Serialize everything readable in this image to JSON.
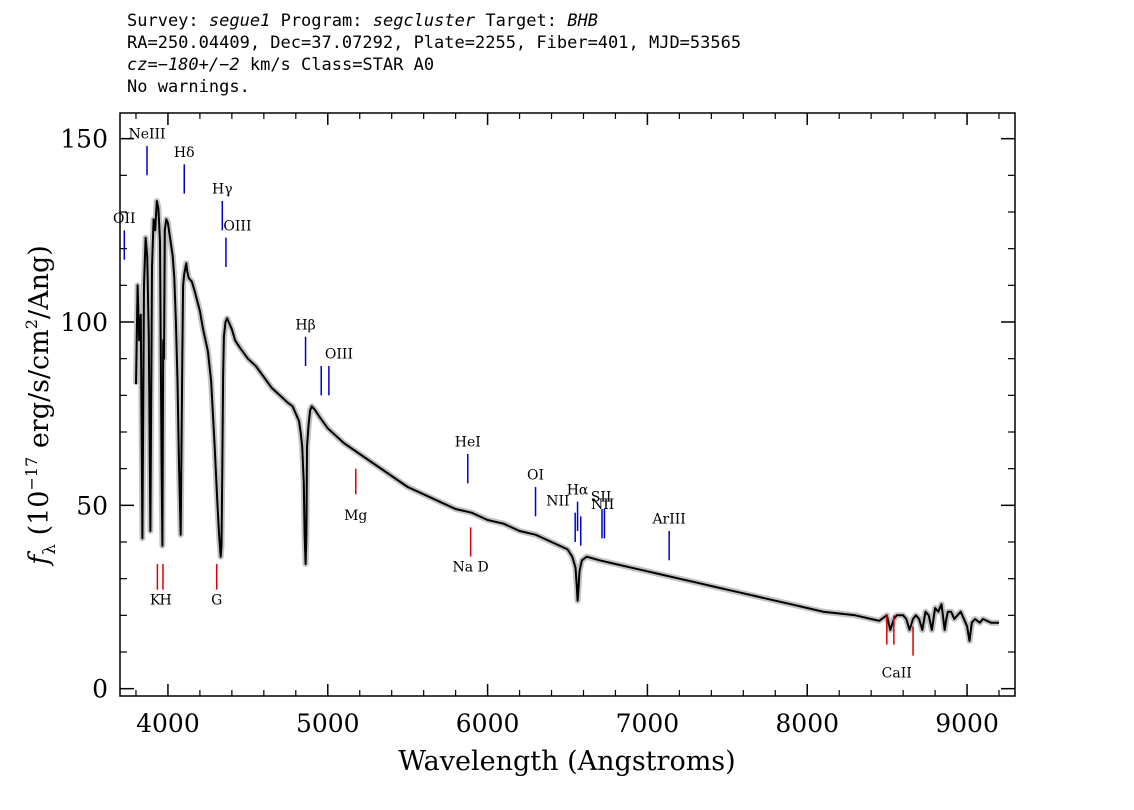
{
  "header": {
    "survey_label": "Survey:",
    "survey": "segue1",
    "program_label": "Program:",
    "program": "segcluster",
    "target_label": "Target:",
    "target": "BHB",
    "line2": "RA=250.04409, Dec=37.07292, Plate=2255, Fiber=401, MJD=53565",
    "cz": "cz=−180+/−2",
    "cz_rest": "km/s Class=STAR A0",
    "warnings": "No warnings."
  },
  "colors": {
    "emission": "#0000cc",
    "absorption": "#dd0000",
    "spectrum": "#000000",
    "error": "#b3b3b3"
  },
  "chart_data": {
    "type": "line",
    "xlabel": "Wavelength (Angstroms)",
    "ylabel": "f_λ (10^-17 erg/s/cm^2/Ang)",
    "xlim": [
      3700,
      9300
    ],
    "ylim": [
      -2,
      157
    ],
    "xticks": [
      "4000",
      "5000",
      "6000",
      "7000",
      "8000",
      "9000"
    ],
    "yticks": [
      "0",
      "50",
      "100",
      "150"
    ],
    "series": [
      {
        "x": [
          3800,
          3810,
          3820,
          3830,
          3840,
          3850,
          3860,
          3870,
          3880,
          3890,
          3900,
          3910,
          3920,
          3930,
          3940,
          3950,
          3960,
          3965,
          3970,
          3975,
          3980,
          3990,
          4000,
          4010,
          4020,
          4030,
          4040,
          4050,
          4060,
          4070,
          4080,
          4090,
          4095,
          4102,
          4110,
          4115,
          4120,
          4130,
          4150,
          4170,
          4200,
          4220,
          4250,
          4270,
          4290,
          4310,
          4320,
          4330,
          4335,
          4340,
          4345,
          4350,
          4360,
          4370,
          4380,
          4400,
          4420,
          4450,
          4500,
          4550,
          4600,
          4650,
          4700,
          4750,
          4780,
          4800,
          4820,
          4830,
          4840,
          4850,
          4855,
          4861,
          4866,
          4870,
          4880,
          4890,
          4900,
          4920,
          4950,
          5000,
          5050,
          5100,
          5200,
          5300,
          5400,
          5500,
          5600,
          5700,
          5800,
          5900,
          6000,
          6100,
          6200,
          6300,
          6400,
          6500,
          6530,
          6550,
          6558,
          6563,
          6568,
          6575,
          6590,
          6620,
          6700,
          6800,
          6900,
          7000,
          7100,
          7200,
          7300,
          7400,
          7500,
          7600,
          7700,
          7800,
          7900,
          8000,
          8100,
          8200,
          8300,
          8400,
          8450,
          8498,
          8520,
          8542,
          8560,
          8600,
          8620,
          8640,
          8662,
          8680,
          8700,
          8720,
          8740,
          8760,
          8780,
          8800,
          8820,
          8840,
          8860,
          8870,
          8880,
          8900,
          8920,
          8940,
          8960,
          8980,
          9000,
          9015,
          9030,
          9050,
          9080,
          9100,
          9150,
          9200
        ],
        "y": [
          83,
          110,
          95,
          102,
          41,
          110,
          123,
          118,
          96,
          43,
          115,
          128,
          125,
          133,
          131,
          122,
          60,
          39,
          95,
          90,
          125,
          128,
          127,
          124,
          121,
          118,
          112,
          100,
          84,
          60,
          42,
          90,
          110,
          113,
          115,
          116,
          114,
          112,
          111,
          108,
          103,
          98,
          92,
          84,
          68,
          50,
          42,
          36,
          39,
          60,
          85,
          96,
          100,
          101,
          100,
          98,
          95,
          93,
          90,
          88,
          85,
          82,
          80,
          78,
          77,
          75,
          73,
          70,
          66,
          56,
          42,
          34,
          42,
          66,
          72,
          76,
          77,
          76,
          74,
          71,
          69,
          67,
          64,
          61,
          58,
          55,
          53,
          51,
          49,
          48,
          46,
          45,
          43,
          42,
          40,
          38,
          36,
          33,
          28,
          24,
          27,
          32,
          35,
          36,
          35,
          34,
          33,
          32,
          31,
          30,
          29,
          28,
          27,
          26,
          25,
          24,
          23,
          22,
          21,
          20.5,
          20,
          19,
          18.5,
          20,
          16,
          19,
          20,
          20,
          19,
          16,
          19,
          20,
          19,
          16,
          21,
          20,
          16,
          22,
          21,
          23,
          16,
          19,
          21,
          21,
          19,
          20,
          21,
          19,
          17,
          13,
          18,
          19,
          18,
          19,
          18,
          18
        ]
      }
    ],
    "emission_lines": [
      {
        "label": "OII",
        "x": 3727,
        "y1": 117,
        "y2": 125,
        "lx": 3727,
        "ly": 127
      },
      {
        "label": "NeIII",
        "x": 3869,
        "y1": 140,
        "y2": 148,
        "lx": 3869,
        "ly": 150
      },
      {
        "label": "Hδ",
        "x": 4102,
        "y1": 135,
        "y2": 143,
        "lx": 4102,
        "ly": 145
      },
      {
        "label": "Hγ",
        "x": 4340,
        "y1": 125,
        "y2": 133,
        "lx": 4340,
        "ly": 135
      },
      {
        "label": "OIII",
        "x": 4363,
        "y1": 115,
        "y2": 123,
        "lx": 4435,
        "ly": 125
      },
      {
        "label": "Hβ",
        "x": 4861,
        "y1": 88,
        "y2": 96,
        "lx": 4861,
        "ly": 98
      },
      {
        "label": "OIII",
        "x": 4959,
        "y1": 80,
        "y2": 88,
        "lx": 5070,
        "ly": 90
      },
      {
        "label": "OIII",
        "x": 5007,
        "y1": 80,
        "y2": 88,
        "lx": "",
        "ly": ""
      },
      {
        "label": "HeI",
        "x": 5876,
        "y1": 56,
        "y2": 64,
        "lx": 5876,
        "ly": 66
      },
      {
        "label": "OI",
        "x": 6300,
        "y1": 47,
        "y2": 55,
        "lx": 6300,
        "ly": 57
      },
      {
        "label": "NII",
        "x": 6548,
        "y1": 40,
        "y2": 48,
        "lx": 6440,
        "ly": 50
      },
      {
        "label": "Hα",
        "x": 6563,
        "y1": 43,
        "y2": 51,
        "lx": 6563,
        "ly": 53
      },
      {
        "label": "NII",
        "x": 6583,
        "y1": 39,
        "y2": 47,
        "lx": 6720,
        "ly": 49
      },
      {
        "label": "SII",
        "x": 6716,
        "y1": 41,
        "y2": 49,
        "lx": 6710,
        "ly": 51
      },
      {
        "label": "SII",
        "x": 6731,
        "y1": 41,
        "y2": 49,
        "lx": "",
        "ly": ""
      },
      {
        "label": "ArIII",
        "x": 7136,
        "y1": 35,
        "y2": 43,
        "lx": 7136,
        "ly": 45
      }
    ],
    "absorption_lines": [
      {
        "label": "K",
        "x": 3934,
        "y1": 27,
        "y2": 34,
        "lx": 3920,
        "ly": 23
      },
      {
        "label": "H",
        "x": 3969,
        "y1": 27,
        "y2": 34,
        "lx": 3985,
        "ly": 23
      },
      {
        "label": "G",
        "x": 4305,
        "y1": 27,
        "y2": 34,
        "lx": 4305,
        "ly": 23
      },
      {
        "label": "Mg",
        "x": 5175,
        "y1": 53,
        "y2": 60,
        "lx": 5175,
        "ly": 46
      },
      {
        "label": "Na D",
        "x": 5894,
        "y1": 36,
        "y2": 44,
        "lx": 5894,
        "ly": 32
      },
      {
        "label": "CaII",
        "x": 8498,
        "y1": 12,
        "y2": 20,
        "lx": 8560,
        "ly": 3
      },
      {
        "label": "CaII",
        "x": 8542,
        "y1": 12,
        "y2": 20,
        "lx": "",
        "ly": ""
      },
      {
        "label": "CaII",
        "x": 8662,
        "y1": 9,
        "y2": 17,
        "lx": "",
        "ly": ""
      }
    ]
  }
}
